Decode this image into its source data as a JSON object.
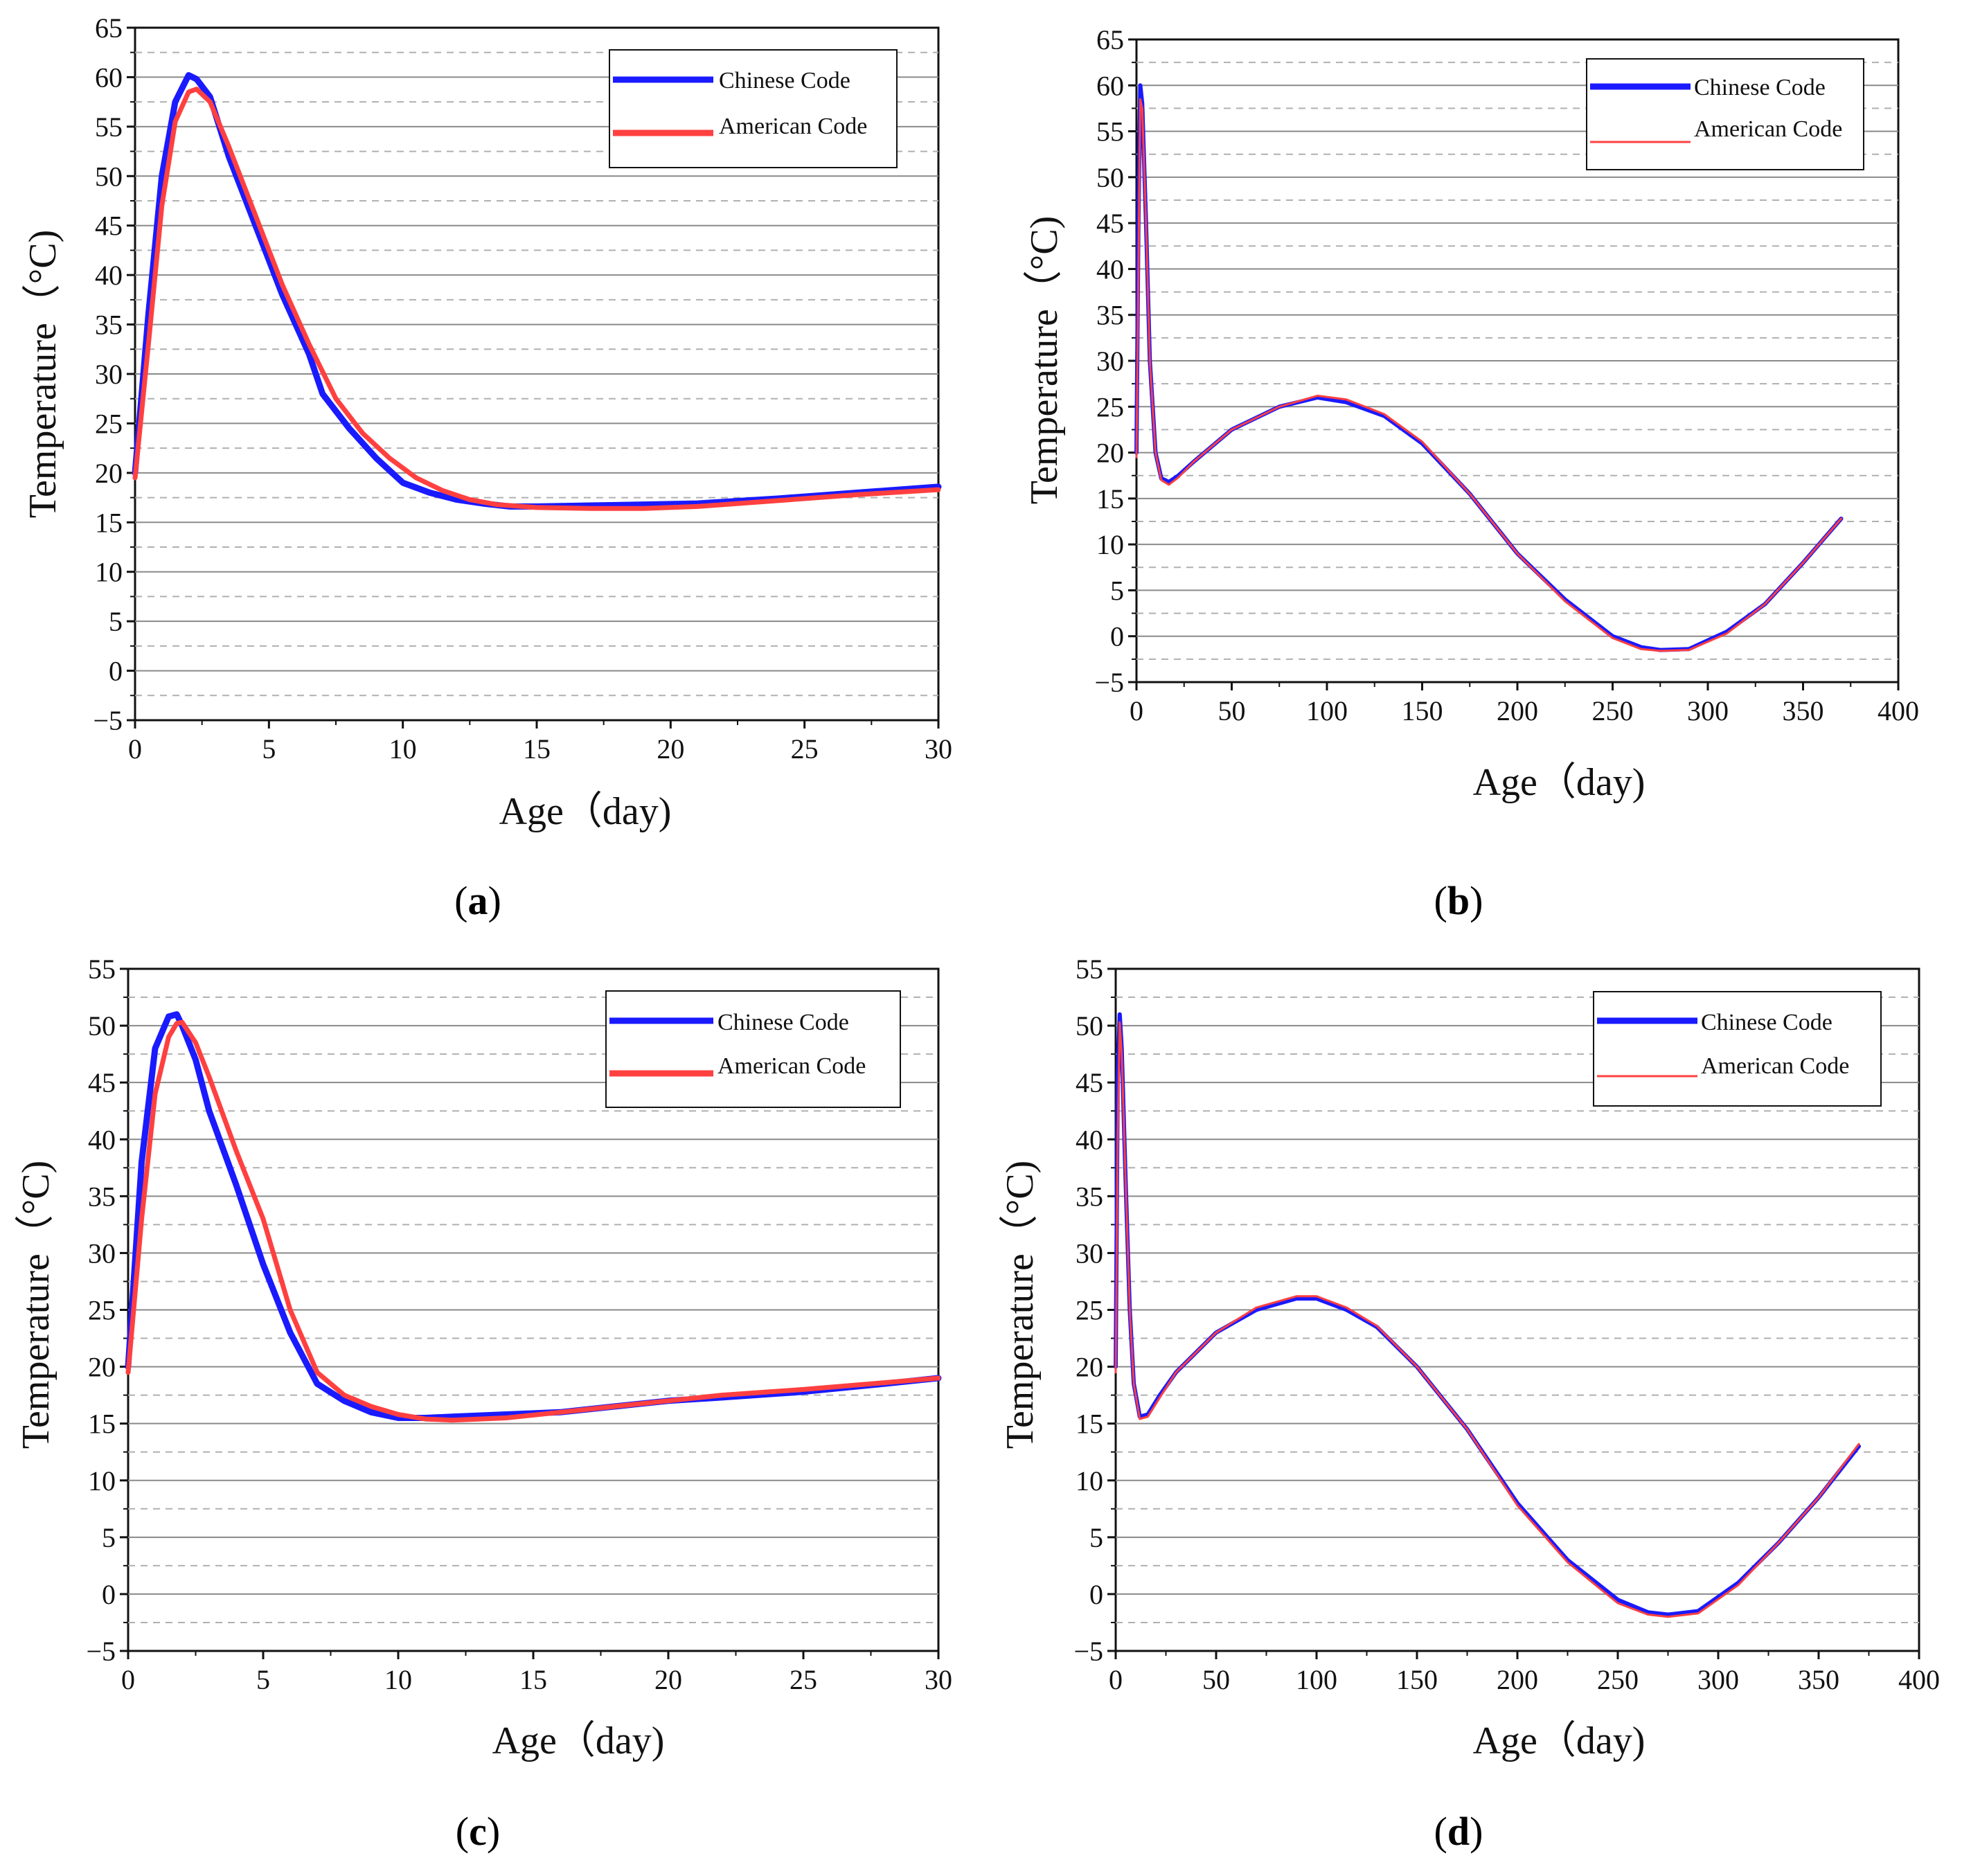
{
  "chart_data": [
    {
      "type": "line",
      "panel_label": "(a)",
      "panel_label_letter": "a",
      "xlabel": "Age（day)",
      "ylabel": "Temperature（°C)",
      "xlim": [
        0,
        30
      ],
      "ylim": [
        -5,
        65
      ],
      "xticks": [
        0,
        5,
        10,
        15,
        20,
        25,
        30
      ],
      "yticks": [
        -5,
        0,
        5,
        10,
        15,
        20,
        25,
        30,
        35,
        40,
        45,
        50,
        55,
        60,
        65
      ],
      "legend_position": "top-right",
      "series": [
        {
          "name": "Chinese Code",
          "color": "#1a1aff",
          "x": [
            0,
            0.5,
            1.0,
            1.5,
            2.0,
            2.3,
            2.8,
            3.5,
            4.5,
            5.5,
            6.5,
            7.0,
            8.0,
            9.0,
            10.0,
            11.0,
            12.0,
            13.0,
            14.0,
            15.0,
            17.0,
            19.0,
            21.0,
            24.0,
            27.0,
            30.0
          ],
          "y": [
            20.0,
            36.0,
            50.0,
            57.5,
            60.2,
            59.8,
            58.0,
            52.0,
            45.0,
            38.0,
            32.0,
            28.0,
            24.5,
            21.5,
            19.0,
            18.0,
            17.3,
            16.9,
            16.6,
            16.6,
            16.7,
            16.8,
            16.9,
            17.4,
            18.0,
            18.6
          ]
        },
        {
          "name": "American Code",
          "color": "#ff4040",
          "x": [
            0,
            0.5,
            1.0,
            1.5,
            2.0,
            2.3,
            2.8,
            3.5,
            4.5,
            5.5,
            6.5,
            7.5,
            8.5,
            9.5,
            10.5,
            11.5,
            12.5,
            13.5,
            15.0,
            17.0,
            19.0,
            21.0,
            24.0,
            27.0,
            30.0
          ],
          "y": [
            19.5,
            33.0,
            47.0,
            55.5,
            58.5,
            58.8,
            57.5,
            53.0,
            46.0,
            39.0,
            33.0,
            27.5,
            24.0,
            21.5,
            19.5,
            18.2,
            17.3,
            16.8,
            16.5,
            16.4,
            16.4,
            16.6,
            17.2,
            17.8,
            18.3
          ]
        }
      ]
    },
    {
      "type": "line",
      "panel_label": "(b)",
      "panel_label_letter": "b",
      "xlabel": "Age（day)",
      "ylabel": "Temperature（°C)",
      "xlim": [
        0,
        400
      ],
      "ylim": [
        -5,
        65
      ],
      "xticks": [
        0,
        50,
        100,
        150,
        200,
        250,
        300,
        350,
        400
      ],
      "yticks": [
        -5,
        0,
        5,
        10,
        15,
        20,
        25,
        30,
        35,
        40,
        45,
        50,
        55,
        60,
        65
      ],
      "legend_position": "top-right",
      "series": [
        {
          "name": "Chinese Code",
          "color": "#1a1aff",
          "x": [
            0,
            1,
            2,
            3,
            5,
            7,
            10,
            13,
            17,
            22,
            30,
            50,
            75,
            95,
            110,
            130,
            150,
            175,
            200,
            225,
            250,
            265,
            275,
            290,
            310,
            330,
            350,
            370
          ],
          "y": [
            20.0,
            45.0,
            60.0,
            58.0,
            45.0,
            30.0,
            20.0,
            17.2,
            16.8,
            17.5,
            19.0,
            22.5,
            25.0,
            26.0,
            25.5,
            24.0,
            21.0,
            15.5,
            9.0,
            4.0,
            0.0,
            -1.2,
            -1.5,
            -1.4,
            0.5,
            3.5,
            8.0,
            12.8
          ]
        },
        {
          "name": "American Code",
          "color": "#ff4040",
          "x": [
            0,
            1,
            2,
            3,
            5,
            7,
            10,
            13,
            17,
            22,
            30,
            50,
            75,
            95,
            110,
            130,
            150,
            175,
            200,
            225,
            250,
            265,
            275,
            290,
            310,
            330,
            350,
            370
          ],
          "y": [
            19.5,
            40.0,
            58.5,
            57.5,
            45.0,
            30.0,
            20.0,
            17.0,
            16.5,
            17.3,
            19.0,
            22.5,
            25.0,
            26.2,
            25.8,
            24.2,
            21.2,
            15.5,
            9.0,
            3.8,
            -0.2,
            -1.4,
            -1.6,
            -1.5,
            0.3,
            3.5,
            8.0,
            12.8
          ]
        }
      ]
    },
    {
      "type": "line",
      "panel_label": "(c)",
      "panel_label_letter": "c",
      "xlabel": "Age（day)",
      "ylabel": "Temperature（°C)",
      "xlim": [
        0,
        30
      ],
      "ylim": [
        -5,
        55
      ],
      "xticks": [
        0,
        5,
        10,
        15,
        20,
        25,
        30
      ],
      "yticks": [
        -5,
        0,
        5,
        10,
        15,
        20,
        25,
        30,
        35,
        40,
        45,
        50,
        55
      ],
      "legend_position": "top-right",
      "series": [
        {
          "name": "Chinese Code",
          "color": "#1a1aff",
          "x": [
            0,
            0.5,
            1.0,
            1.5,
            1.8,
            2.0,
            2.5,
            3.0,
            4.0,
            5.0,
            6.0,
            7.0,
            8.0,
            9.0,
            10.0,
            11.0,
            12.0,
            14.0,
            16.0,
            18.0,
            20.0,
            22.0,
            25.0,
            28.0,
            30.0
          ],
          "y": [
            20.0,
            38.0,
            48.0,
            50.8,
            51.0,
            50.0,
            47.0,
            42.5,
            36.0,
            29.0,
            23.0,
            18.5,
            17.0,
            16.0,
            15.5,
            15.5,
            15.6,
            15.8,
            16.0,
            16.5,
            17.0,
            17.3,
            17.8,
            18.5,
            19.0
          ]
        },
        {
          "name": "American Code",
          "color": "#ff4040",
          "x": [
            0,
            0.5,
            1.0,
            1.5,
            1.8,
            2.0,
            2.5,
            3.0,
            4.0,
            5.0,
            6.0,
            7.0,
            8.0,
            9.0,
            10.0,
            11.0,
            12.0,
            14.0,
            16.0,
            18.0,
            20.0,
            22.0,
            25.0,
            28.0,
            30.0
          ],
          "y": [
            19.5,
            33.0,
            44.0,
            49.0,
            50.2,
            50.3,
            48.5,
            45.5,
            39.0,
            33.0,
            25.0,
            19.5,
            17.5,
            16.5,
            15.8,
            15.4,
            15.3,
            15.5,
            16.0,
            16.5,
            17.0,
            17.5,
            18.0,
            18.6,
            19.0
          ]
        }
      ]
    },
    {
      "type": "line",
      "panel_label": "(d)",
      "panel_label_letter": "d",
      "xlabel": "Age（day)",
      "ylabel": "Temperature（°C)",
      "xlim": [
        0,
        400
      ],
      "ylim": [
        -5,
        55
      ],
      "xticks": [
        0,
        50,
        100,
        150,
        200,
        250,
        300,
        350,
        400
      ],
      "yticks": [
        -5,
        0,
        5,
        10,
        15,
        20,
        25,
        30,
        35,
        40,
        45,
        50,
        55
      ],
      "legend_position": "top-right",
      "series": [
        {
          "name": "Chinese Code",
          "color": "#1a1aff",
          "x": [
            0,
            1,
            2,
            3,
            5,
            7,
            9,
            12,
            16,
            22,
            30,
            50,
            70,
            90,
            100,
            115,
            130,
            150,
            175,
            200,
            225,
            250,
            265,
            275,
            290,
            310,
            330,
            350,
            370
          ],
          "y": [
            20.0,
            45.0,
            51.0,
            48.0,
            36.0,
            25.0,
            18.5,
            15.6,
            15.8,
            17.5,
            19.5,
            23.0,
            25.0,
            26.0,
            26.0,
            25.0,
            23.5,
            20.0,
            14.5,
            8.0,
            3.0,
            -0.5,
            -1.6,
            -1.8,
            -1.5,
            1.0,
            4.5,
            8.5,
            13.0
          ]
        },
        {
          "name": "American Code",
          "color": "#ff4040",
          "x": [
            0,
            1,
            2,
            3,
            5,
            7,
            9,
            12,
            16,
            22,
            30,
            50,
            70,
            90,
            100,
            115,
            130,
            150,
            175,
            200,
            225,
            250,
            265,
            275,
            290,
            310,
            330,
            350,
            370
          ],
          "y": [
            19.5,
            40.0,
            50.3,
            47.5,
            36.0,
            25.0,
            18.5,
            15.4,
            15.6,
            17.3,
            19.5,
            23.0,
            25.2,
            26.2,
            26.2,
            25.2,
            23.6,
            20.0,
            14.5,
            7.8,
            2.8,
            -0.8,
            -1.8,
            -2.0,
            -1.7,
            0.8,
            4.5,
            8.5,
            13.2
          ]
        }
      ]
    }
  ]
}
